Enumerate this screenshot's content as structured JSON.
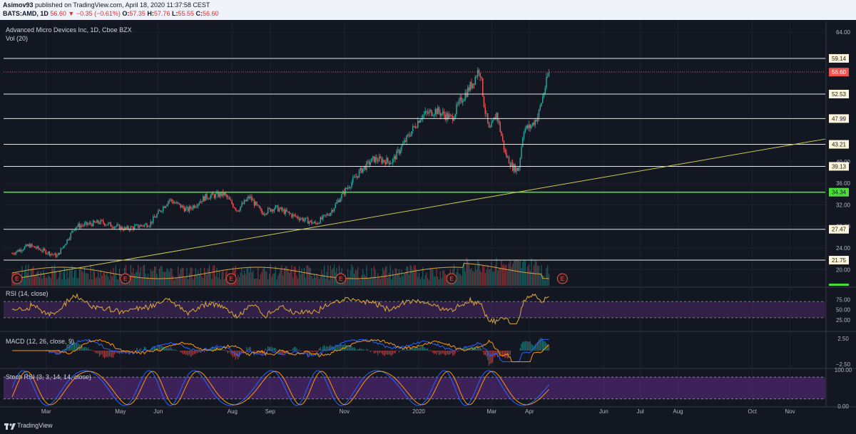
{
  "header": {
    "author": "Asimov93",
    "published": "published on TradingView.com, April 18, 2020 11:37:58 CEST",
    "symbol_line": "BATS:AMD, 1D",
    "last": "56.60",
    "change": "▼ −0.35 (−0.61%)",
    "o_label": "O:",
    "o": "57.35",
    "h_label": "H:",
    "h": "57.76",
    "l_label": "L:",
    "l": "55.55",
    "c_label": "C:",
    "c": "56.60"
  },
  "legend": {
    "title": "Advanced Micro Devices Inc, 1D, Cboe BZX",
    "vol": "Vol (20)",
    "rsi": "RSI (14, close)",
    "macd": "MACD (12, 26, close, 9)",
    "stoch": "Stoch RSI (3, 3, 14, 14, close)"
  },
  "footer": {
    "brand": "TradingView"
  },
  "colors": {
    "background": "#131722",
    "up": "#26a69a",
    "down": "#ef5350",
    "trendline": "#c9c94a",
    "support_green": "#4cdd3c",
    "rsi": "#e0a93a",
    "band": "#3b2451"
  },
  "chart_data": {
    "type": "candlestick",
    "symbol": "AMD",
    "x_tick_labels": [
      "Mar",
      "May",
      "Jun",
      "Aug",
      "Sep",
      "Nov",
      "2020",
      "Mar",
      "Apr",
      "Jun",
      "Jul",
      "Aug",
      "Oct",
      "Nov"
    ],
    "y_tick_labels": [
      "64.00",
      "40.00",
      "36.00",
      "32.00",
      "28.00",
      "24.00",
      "20.00"
    ],
    "ylim": [
      17,
      66
    ],
    "horizontal_levels": [
      {
        "label": "59.14",
        "value": 59.14
      },
      {
        "label": "52.53",
        "value": 52.53
      },
      {
        "label": "47.99",
        "value": 47.99
      },
      {
        "label": "43.21",
        "value": 43.21
      },
      {
        "label": "39.13",
        "value": 39.13
      },
      {
        "label": "34.34",
        "value": 34.34,
        "green": true
      },
      {
        "label": "27.47",
        "value": 27.47
      },
      {
        "label": "21.75",
        "value": 21.75
      }
    ],
    "last_price_label": "56.60",
    "trendline": {
      "from": [
        "2019-02-01",
        18.2
      ],
      "to": [
        "2020-11-30",
        44.2
      ]
    },
    "price_keypoints": [
      [
        "2019-02-01",
        23.0
      ],
      [
        "2019-02-15",
        24.5
      ],
      [
        "2019-03-10",
        22.5
      ],
      [
        "2019-03-25",
        28.0
      ],
      [
        "2019-04-15",
        28.8
      ],
      [
        "2019-05-05",
        27.5
      ],
      [
        "2019-05-25",
        28.5
      ],
      [
        "2019-06-10",
        33.0
      ],
      [
        "2019-06-25",
        31.0
      ],
      [
        "2019-07-10",
        33.5
      ],
      [
        "2019-07-25",
        34.0
      ],
      [
        "2019-08-05",
        31.0
      ],
      [
        "2019-08-15",
        33.5
      ],
      [
        "2019-08-25",
        30.5
      ],
      [
        "2019-09-05",
        31.5
      ],
      [
        "2019-09-20",
        30.0
      ],
      [
        "2019-10-08",
        28.5
      ],
      [
        "2019-10-20",
        30.5
      ],
      [
        "2019-11-01",
        34.5
      ],
      [
        "2019-11-15",
        38.5
      ],
      [
        "2019-11-25",
        40.5
      ],
      [
        "2019-12-10",
        40.0
      ],
      [
        "2019-12-20",
        43.5
      ],
      [
        "2020-01-03",
        48.5
      ],
      [
        "2020-01-15",
        49.5
      ],
      [
        "2020-01-28",
        48.0
      ],
      [
        "2020-02-05",
        51.5
      ],
      [
        "2020-02-14",
        54.5
      ],
      [
        "2020-02-20",
        57.5
      ],
      [
        "2020-02-24",
        50.0
      ],
      [
        "2020-02-28",
        45.5
      ],
      [
        "2020-03-05",
        49.0
      ],
      [
        "2020-03-12",
        41.5
      ],
      [
        "2020-03-18",
        39.0
      ],
      [
        "2020-03-23",
        38.5
      ],
      [
        "2020-03-27",
        46.0
      ],
      [
        "2020-04-02",
        46.5
      ],
      [
        "2020-04-08",
        48.5
      ],
      [
        "2020-04-14",
        54.0
      ],
      [
        "2020-04-17",
        56.6
      ]
    ],
    "earnings_markers": [
      {
        "label": "E",
        "date": "2019-02-05"
      },
      {
        "label": "E",
        "date": "2019-05-05"
      },
      {
        "label": "E",
        "date": "2019-07-31"
      },
      {
        "label": "E",
        "date": "2019-10-29"
      },
      {
        "label": "E",
        "date": "2020-01-28"
      },
      {
        "label": "E",
        "date": "2020-04-28"
      }
    ],
    "volume": {
      "name": "Vol (20)",
      "ma_length": 20
    },
    "rsi": {
      "name": "RSI (14, close)",
      "y_tick_labels": [
        "75.00",
        "50.00",
        "25.00"
      ],
      "upper": 70,
      "lower": 30,
      "last": 66
    },
    "macd": {
      "name": "MACD (12, 26, close, 9)",
      "y_tick_labels": [
        "2.50",
        "−2.50"
      ]
    },
    "stoch_rsi": {
      "name": "Stoch RSI (3, 3, 14, 14, close)",
      "y_tick_labels": [
        "100.00",
        "0.00"
      ],
      "upper": 80,
      "lower": 20
    }
  }
}
